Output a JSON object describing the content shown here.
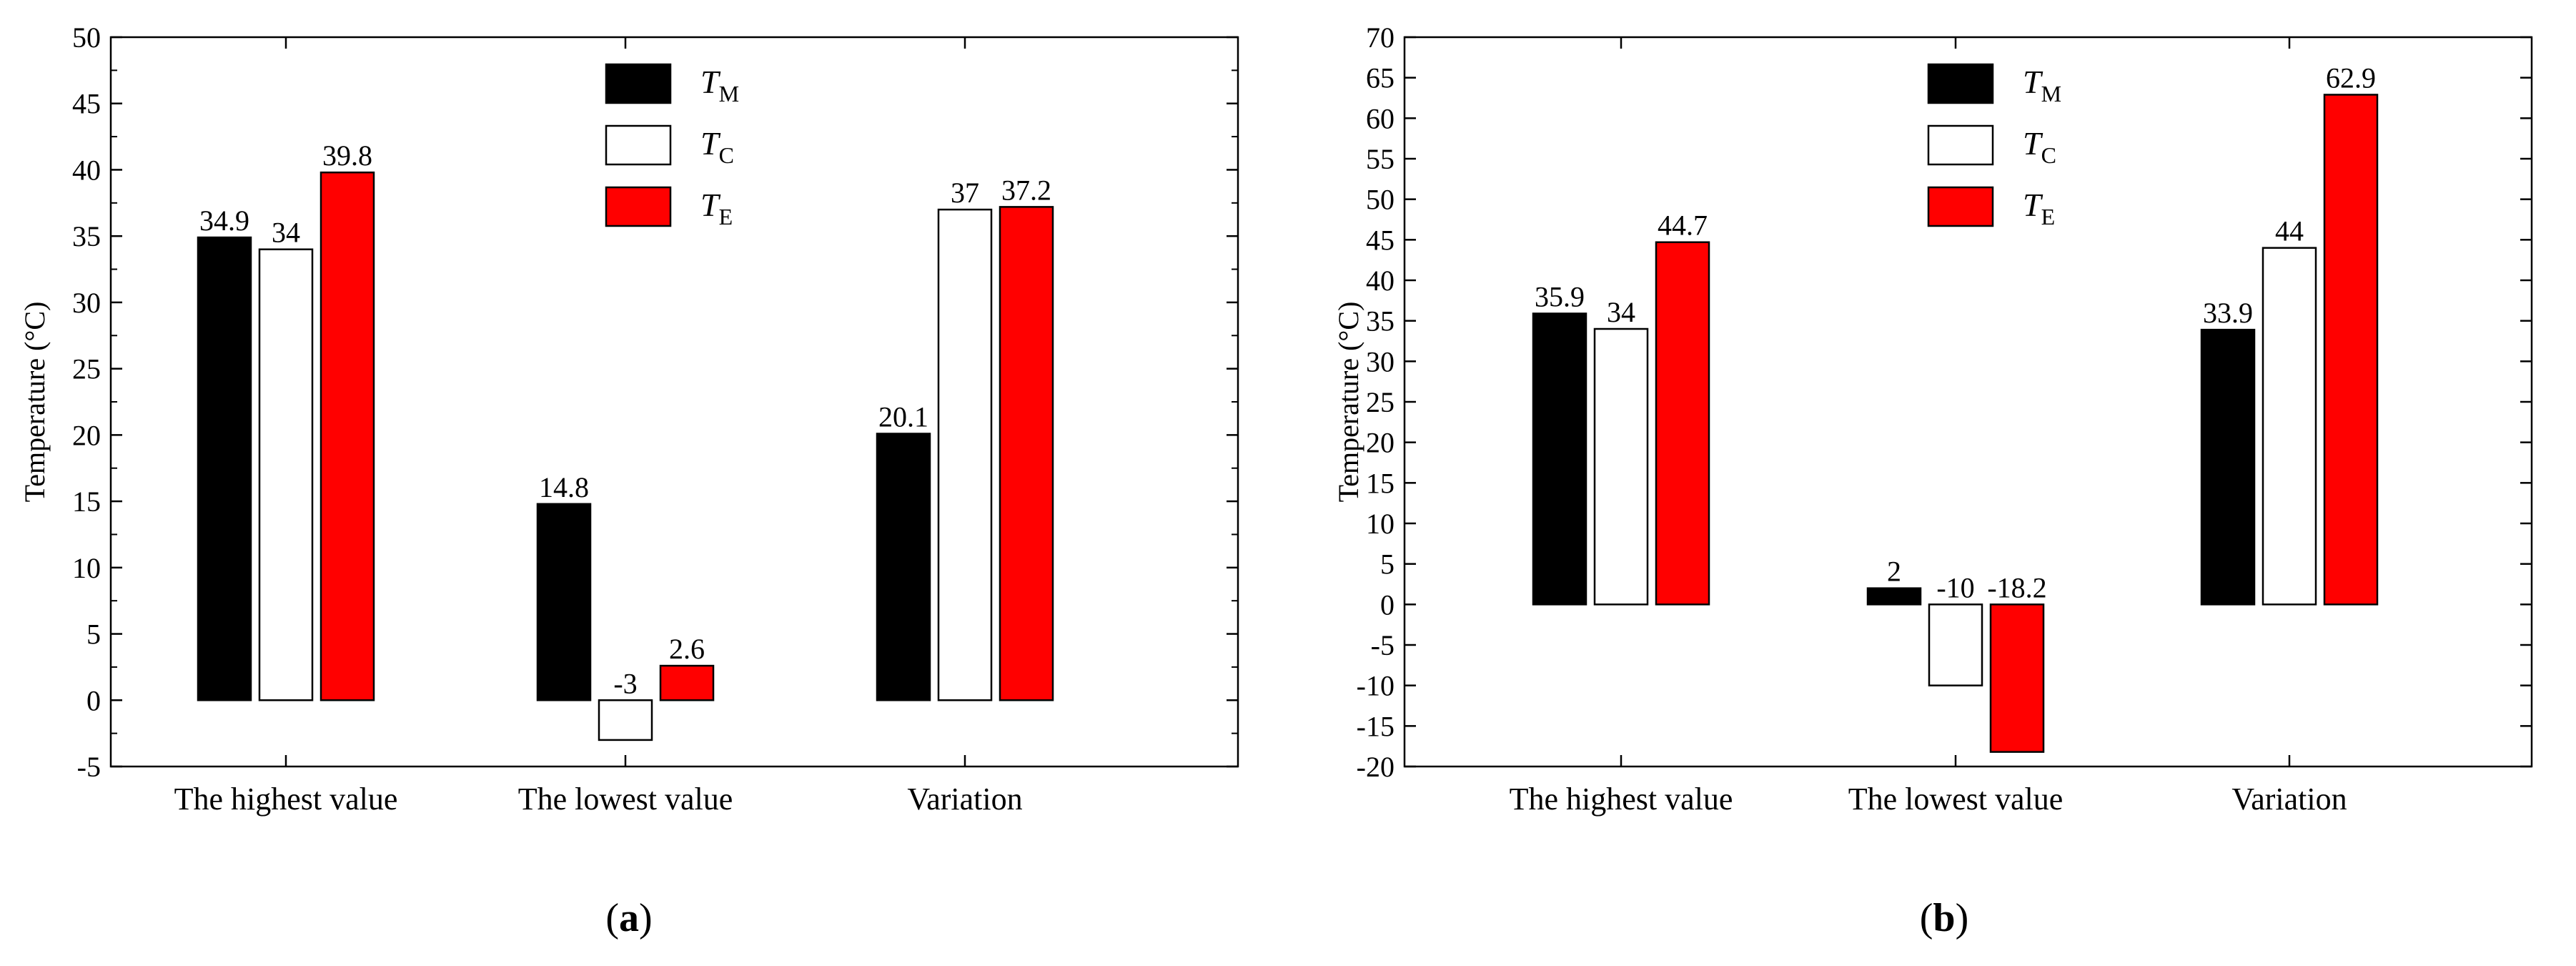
{
  "chart_data": [
    {
      "type": "bar",
      "panel_label": "a",
      "categories": [
        "The highest value",
        "The lowest value",
        "Variation"
      ],
      "series": [
        {
          "name": "M",
          "color": "#000000",
          "values": [
            34.9,
            14.8,
            20.1
          ],
          "labels": [
            "34.9",
            "14.8",
            "20.1"
          ]
        },
        {
          "name": "C",
          "color": "#ffffff",
          "values": [
            34,
            -3,
            37
          ],
          "labels": [
            "34",
            "-3",
            "37"
          ]
        },
        {
          "name": "E",
          "color": "#ff0000",
          "values": [
            39.8,
            2.6,
            37.2
          ],
          "labels": [
            "39.8",
            "2.6",
            "37.2"
          ]
        }
      ],
      "ylabel": "Temperature (°C)",
      "ylim": [
        -5,
        50
      ],
      "yticks": [
        "-5",
        "0",
        "5",
        "10",
        "15",
        "20",
        "25",
        "30",
        "35",
        "40",
        "45",
        "50"
      ],
      "legend_placement": "top-center",
      "grid": false
    },
    {
      "type": "bar",
      "panel_label": "b",
      "categories": [
        "The highest value",
        "The lowest value",
        "Variation"
      ],
      "series": [
        {
          "name": "M",
          "color": "#000000",
          "values": [
            35.9,
            2,
            33.9
          ],
          "labels": [
            "35.9",
            "2",
            "33.9"
          ]
        },
        {
          "name": "C",
          "color": "#ffffff",
          "values": [
            34,
            -10,
            44
          ],
          "labels": [
            "34",
            "-10",
            "44"
          ]
        },
        {
          "name": "E",
          "color": "#ff0000",
          "values": [
            44.7,
            -18.2,
            62.9
          ],
          "labels": [
            "44.7",
            "-18.2",
            "62.9"
          ]
        }
      ],
      "ylabel": "Temperature (°C)",
      "ylim": [
        -20,
        70
      ],
      "yticks": [
        "-20",
        "-15",
        "-10",
        "-5",
        "0",
        "5",
        "10",
        "15",
        "20",
        "25",
        "30",
        "35",
        "40",
        "45",
        "50",
        "55",
        "60",
        "65",
        "70"
      ],
      "legend_placement": "top-center",
      "grid": false
    }
  ],
  "legend_symbol": "T"
}
